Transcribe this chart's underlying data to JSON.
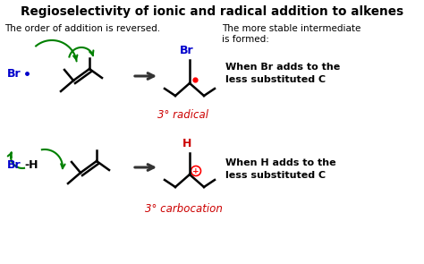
{
  "title": "Regioselectivity of ionic and radical addition to alkenes",
  "subtitle_left": "The order of addition is reversed.",
  "subtitle_right": "The more stable intermediate\nis formed:",
  "bold_right1": "When Br adds to the\nless substituted C",
  "bold_right2": "When H adds to the\nless substituted C",
  "label_radical": "3° radical",
  "label_carbocation": "3° carbocation",
  "bg_color": "#ffffff",
  "title_color": "#000000",
  "text_color": "#000000",
  "red_color": "#cc0000",
  "blue_color": "#0000cc",
  "green_color": "#008000"
}
